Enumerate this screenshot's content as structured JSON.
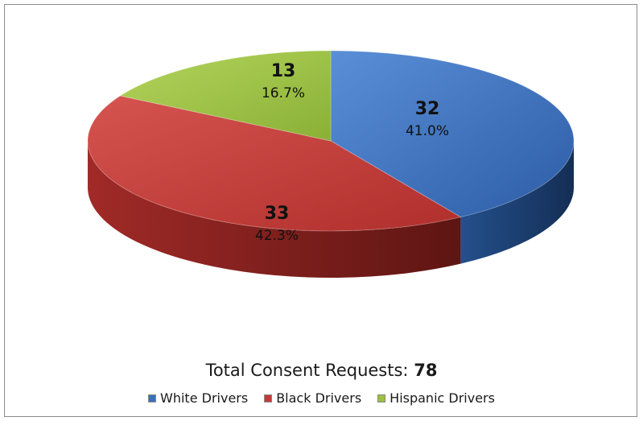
{
  "chart_data": {
    "type": "pie",
    "title": "",
    "slices": [
      {
        "name": "White Drivers",
        "value": 32,
        "percent_label": "41.0%",
        "color": "#3a70c0",
        "side_color": "#1c3f72"
      },
      {
        "name": "Black Drivers",
        "value": 33,
        "percent_label": "42.3%",
        "color": "#c23a36",
        "side_color": "#7a1e1c"
      },
      {
        "name": "Hispanic Drivers",
        "value": 13,
        "percent_label": "16.7%",
        "color": "#9cc141",
        "side_color": "#5d7a22"
      }
    ],
    "legend_position": "bottom"
  },
  "total": {
    "label": "Total Consent Requests:",
    "value": "78"
  }
}
